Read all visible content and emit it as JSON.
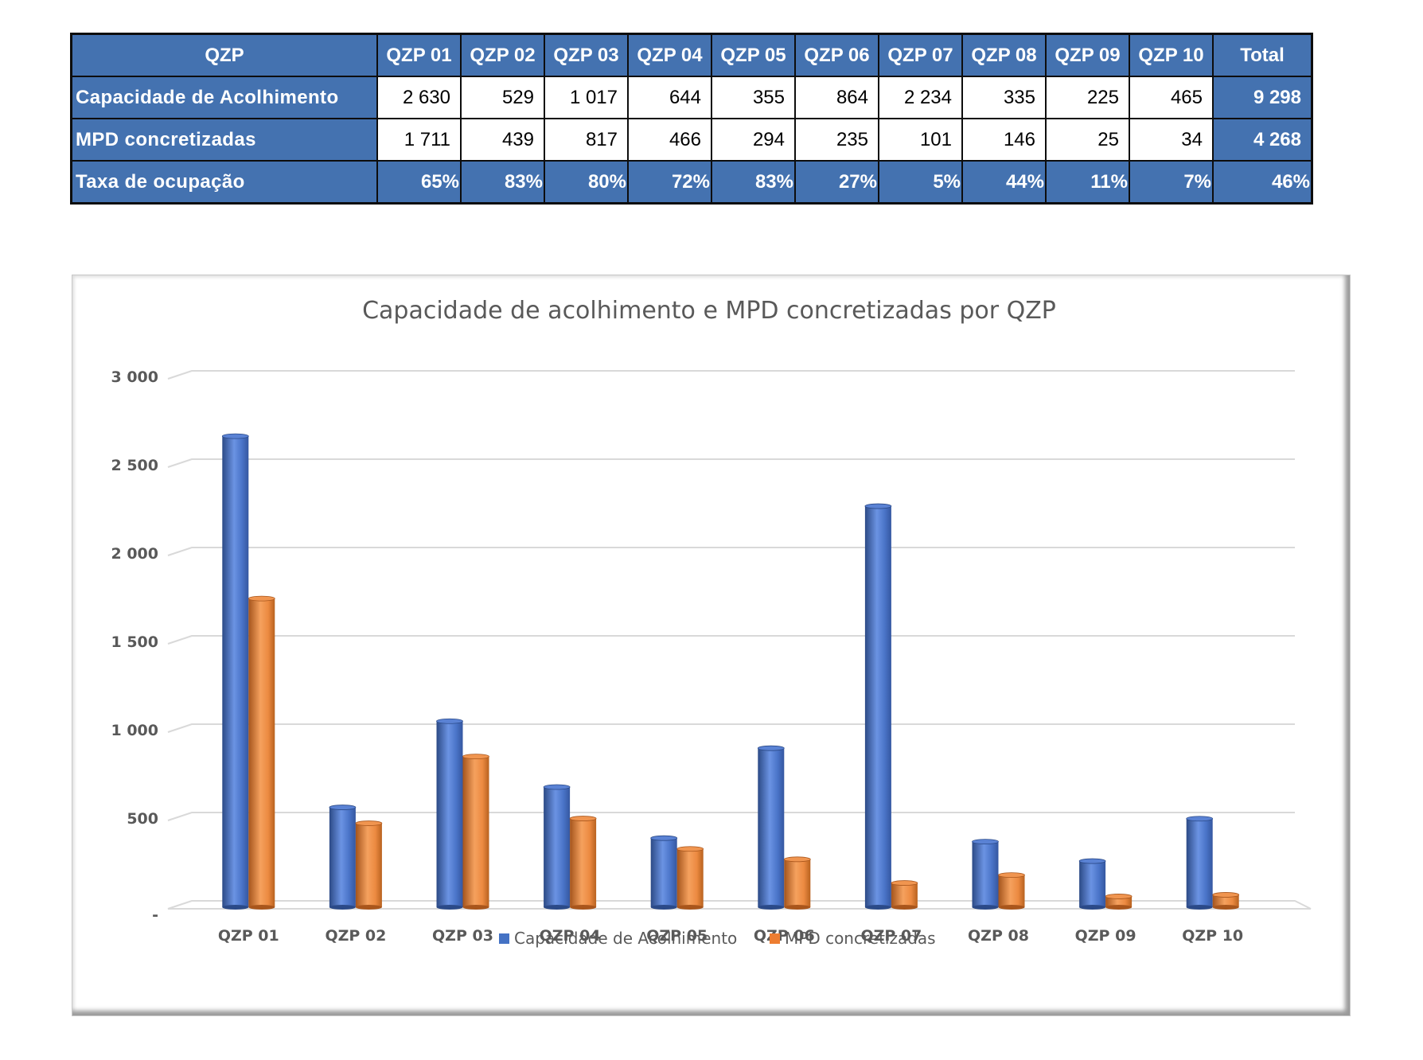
{
  "table": {
    "header_label": "QZP",
    "columns": [
      "QZP 01",
      "QZP 02",
      "QZP 03",
      "QZP 04",
      "QZP 05",
      "QZP 06",
      "QZP 07",
      "QZP 08",
      "QZP 09",
      "QZP 10"
    ],
    "total_label": "Total",
    "rows": [
      {
        "label": "Capacidade de Acolhimento",
        "values": [
          "2 630",
          "529",
          "1 017",
          "644",
          "355",
          "864",
          "2 234",
          "335",
          "225",
          "465"
        ],
        "total": "9 298"
      },
      {
        "label": "MPD concretizadas",
        "values": [
          "1 711",
          "439",
          "817",
          "466",
          "294",
          "235",
          "101",
          "146",
          "25",
          "34"
        ],
        "total": "4 268"
      },
      {
        "label": "Taxa de ocupação",
        "values": [
          "65%",
          "83%",
          "80%",
          "72%",
          "83%",
          "27%",
          "5%",
          "44%",
          "11%",
          "7%"
        ],
        "total": "46%"
      }
    ]
  },
  "colors": {
    "table_header_bg": "#4472b0",
    "series_capacidade": "#4472c4",
    "series_mpd": "#ed7d31"
  },
  "chart_data": {
    "type": "bar",
    "title": "Capacidade de acolhimento e MPD concretizadas por QZP",
    "xlabel": "",
    "ylabel": "",
    "categories": [
      "QZP 01",
      "QZP 02",
      "QZP 03",
      "QZP 04",
      "QZP 05",
      "QZP 06",
      "QZP 07",
      "QZP 08",
      "QZP 09",
      "QZP 10"
    ],
    "series": [
      {
        "name": "Capacidade de Acolhimento",
        "color": "#4472c4",
        "values": [
          2630,
          529,
          1017,
          644,
          355,
          864,
          2234,
          335,
          225,
          465
        ]
      },
      {
        "name": "MPD concretizadas",
        "color": "#ed7d31",
        "values": [
          1711,
          439,
          817,
          466,
          294,
          235,
          101,
          146,
          25,
          34
        ]
      }
    ],
    "ylim": [
      0,
      3000
    ],
    "yticks": [
      0,
      500,
      1000,
      1500,
      2000,
      2500,
      3000
    ],
    "ytick_labels": [
      "-",
      "500",
      "1 000",
      "1 500",
      "2 000",
      "2 500",
      "3 000"
    ],
    "grid": true,
    "legend_position": "bottom",
    "style": "3d-cylinder"
  }
}
